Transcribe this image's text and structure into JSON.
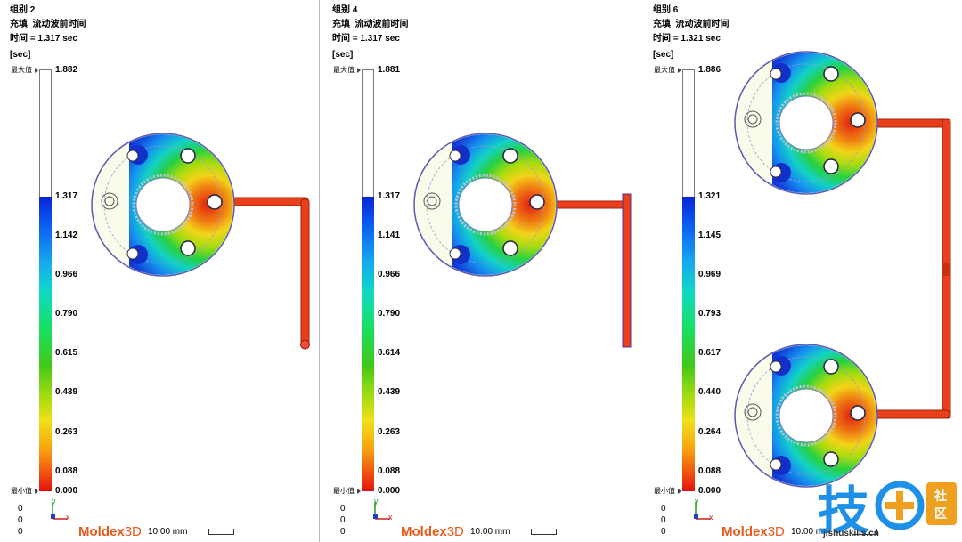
{
  "panels": [
    {
      "group": "组别 2",
      "result": "充填_流动波前时间",
      "time": "时间 = 1.317 sec",
      "unit": "[sec]",
      "max_label": "最大值",
      "min_label": "最小值",
      "ticks": [
        "1.882",
        "1.317",
        "1.142",
        "0.966",
        "0.790",
        "0.615",
        "0.439",
        "0.263",
        "0.088",
        "0.000"
      ],
      "axis_values": [
        "0",
        "0",
        "0"
      ]
    },
    {
      "group": "组别 4",
      "result": "充填_流动波前时间",
      "time": "时间 = 1.317 sec",
      "unit": "[sec]",
      "max_label": "最大值",
      "min_label": "最小值",
      "ticks": [
        "1.881",
        "1.317",
        "1.141",
        "0.966",
        "0.790",
        "0.614",
        "0.439",
        "0.263",
        "0.088",
        "0.000"
      ],
      "axis_values": [
        "0",
        "0",
        "0"
      ]
    },
    {
      "group": "组别 6",
      "result": "充填_流动波前时间",
      "time": "时间 = 1.321 sec",
      "unit": "[sec]",
      "max_label": "最大值",
      "min_label": "最小值",
      "ticks": [
        "1.886",
        "1.321",
        "1.145",
        "0.969",
        "0.793",
        "0.617",
        "0.440",
        "0.264",
        "0.088",
        "0.000"
      ],
      "axis_values": [
        "0",
        "0",
        "0"
      ]
    }
  ],
  "triad": {
    "y": "y",
    "x": "x"
  },
  "logo": {
    "main": "Moldex",
    "suffix": "3D"
  },
  "scale": "10.00 mm",
  "watermark": {
    "text": "技",
    "badge": "社区",
    "url": "jishuskills.cn"
  },
  "colors": {
    "runner": "#e8401a",
    "max_fill": "#1030c8",
    "min_fill": "#e01010",
    "unfilled": "#fbfbec"
  }
}
